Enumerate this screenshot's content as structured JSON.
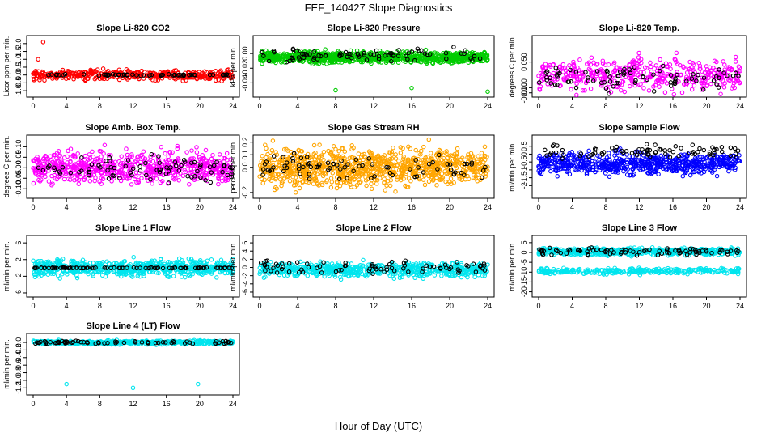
{
  "figure": {
    "title": "FEF_140427  Slope Diagnostics",
    "xlabel": "Hour of Day (UTC)"
  },
  "chart_data": [
    {
      "type": "scatter",
      "title": "Slope Li-820 CO2",
      "ylabel": "Licor ppm per min.",
      "color": "#ff0000",
      "xlim": [
        0,
        24
      ],
      "ylim": [
        -1.2,
        2.3
      ],
      "yticks": [
        -1.0,
        -0.5,
        0.0,
        0.5,
        1.0,
        1.5,
        2.0
      ],
      "ytick_labels": [
        "-1.0",
        "-0.5",
        "0.0",
        "0.5",
        "1.0",
        "1.5",
        "2.0"
      ],
      "xticks": [
        0,
        4,
        8,
        12,
        16,
        20,
        24
      ],
      "xtick_labels": [
        "0",
        "4",
        "8",
        "12",
        "16",
        "20",
        "24"
      ],
      "series": [
        {
          "name": "colored",
          "center": 0.0,
          "spread": 0.25,
          "n": 420,
          "outliers": [
            {
              "x": 1.2,
              "y": 2.1
            },
            {
              "x": 0.6,
              "y": 1.0
            }
          ]
        },
        {
          "name": "black",
          "center": 0.0,
          "spread": 0.08,
          "n": 60
        }
      ]
    },
    {
      "type": "scatter",
      "title": "Slope Li-820 Pressure",
      "ylabel": "kPa per min.",
      "color": "#00cc00",
      "xlim": [
        0,
        24
      ],
      "ylim": [
        -0.055,
        0.02
      ],
      "yticks": [
        -0.04,
        -0.02,
        0.0
      ],
      "ytick_labels": [
        "-0.04",
        "-0.02",
        "0.00"
      ],
      "xticks": [
        0,
        4,
        8,
        12,
        16,
        20,
        24
      ],
      "xtick_labels": [
        "0",
        "4",
        "8",
        "12",
        "16",
        "20",
        "24"
      ],
      "series": [
        {
          "name": "colored",
          "center": -0.005,
          "spread": 0.006,
          "n": 900,
          "outliers": [
            {
              "x": 8,
              "y": -0.05
            },
            {
              "x": 16,
              "y": -0.047
            },
            {
              "x": 24,
              "y": -0.052
            }
          ]
        },
        {
          "name": "black",
          "center": -0.003,
          "spread": 0.008,
          "n": 80
        }
      ]
    },
    {
      "type": "scatter",
      "title": "Slope Li-820 Temp.",
      "ylabel": "degrees C per min.",
      "color": "#ff00ff",
      "xlim": [
        0,
        24
      ],
      "ylim": [
        -0.012,
        0.095
      ],
      "yticks": [
        -0.01,
        0.0,
        0.05
      ],
      "ytick_labels": [
        "-0.010",
        "0.000",
        "0.050"
      ],
      "xticks": [
        0,
        4,
        8,
        12,
        16,
        20,
        24
      ],
      "xtick_labels": [
        "0",
        "4",
        "8",
        "12",
        "16",
        "20",
        "24"
      ],
      "series": [
        {
          "name": "colored",
          "center": 0.025,
          "spread": 0.025,
          "n": 450
        },
        {
          "name": "black",
          "center": 0.02,
          "spread": 0.02,
          "n": 80
        }
      ]
    },
    {
      "type": "scatter",
      "title": "Slope Amb. Box Temp.",
      "ylabel": "degrees C per min.",
      "color": "#ff00ff",
      "xlim": [
        0,
        24
      ],
      "ylim": [
        -0.13,
        0.14
      ],
      "yticks": [
        -0.1,
        -0.05,
        0.0,
        0.05,
        0.1
      ],
      "ytick_labels": [
        "-0.10",
        "-0.05",
        "0.00",
        "0.05",
        "0.10"
      ],
      "xticks": [
        0,
        4,
        8,
        12,
        16,
        20,
        24
      ],
      "xtick_labels": [
        "0",
        "4",
        "8",
        "12",
        "16",
        "20",
        "24"
      ],
      "series": [
        {
          "name": "colored",
          "center": 0.0,
          "spread": 0.06,
          "n": 650
        },
        {
          "name": "black",
          "center": 0.0,
          "spread": 0.05,
          "n": 80
        }
      ]
    },
    {
      "type": "scatter",
      "title": "Slope Gas Stream RH",
      "ylabel": "percent per min.",
      "color": "#ffa500",
      "xlim": [
        0,
        24
      ],
      "ylim": [
        -0.22,
        0.23
      ],
      "yticks": [
        -0.2,
        0.0,
        0.1,
        0.2
      ],
      "ytick_labels": [
        "-0.2",
        "0.0",
        "0.1",
        "0.2"
      ],
      "xticks": [
        0,
        4,
        8,
        12,
        16,
        20,
        24
      ],
      "xtick_labels": [
        "0",
        "4",
        "8",
        "12",
        "16",
        "20",
        "24"
      ],
      "series": [
        {
          "name": "colored",
          "center": 0.0,
          "spread": 0.12,
          "n": 950
        },
        {
          "name": "black",
          "center": 0.0,
          "spread": 0.08,
          "n": 80
        }
      ]
    },
    {
      "type": "scatter",
      "title": "Slope Sample Flow",
      "ylabel": "ml/min per min.",
      "color": "#0000ff",
      "xlim": [
        0,
        24
      ],
      "ylim": [
        -2.6,
        1.0
      ],
      "yticks": [
        -2,
        -1.5,
        -1,
        -0.5,
        0,
        0.5
      ],
      "ytick_labels": [
        "-2",
        "-1.5",
        "-1",
        "-0.5",
        "0",
        "0.5"
      ],
      "xticks": [
        0,
        4,
        8,
        12,
        16,
        20,
        24
      ],
      "xtick_labels": [
        "0",
        "4",
        "8",
        "12",
        "16",
        "20",
        "24"
      ],
      "series": [
        {
          "name": "colored",
          "center": -0.6,
          "spread": 0.55,
          "n": 650
        },
        {
          "name": "black",
          "center": 0.2,
          "spread": 0.35,
          "n": 80
        }
      ]
    },
    {
      "type": "scatter",
      "title": "Slope Line 1 Flow",
      "ylabel": "ml/min per min.",
      "color": "#00e5ee",
      "xlim": [
        0,
        24
      ],
      "ylim": [
        -6.2,
        7.0
      ],
      "yticks": [
        -6,
        -2,
        2,
        6
      ],
      "ytick_labels": [
        "-6",
        "-2",
        "2",
        "6"
      ],
      "xticks": [
        0,
        4,
        8,
        12,
        16,
        20,
        24
      ],
      "xtick_labels": [
        "0",
        "4",
        "8",
        "12",
        "16",
        "20",
        "24"
      ],
      "series": [
        {
          "name": "colored",
          "center": 0.0,
          "spread": 1.6,
          "n": 650
        },
        {
          "name": "black",
          "center": 0.0,
          "spread": 0.15,
          "n": 90
        }
      ]
    },
    {
      "type": "scatter",
      "title": "Slope Line 2 Flow",
      "ylabel": "ml/min per min.",
      "color": "#00e5ee",
      "xlim": [
        0,
        24
      ],
      "ylim": [
        -6.4,
        7.0
      ],
      "yticks": [
        -6,
        -4,
        -2,
        0,
        2,
        4,
        6
      ],
      "ytick_labels": [
        "-6",
        "-4",
        "-2",
        "0",
        "2",
        "4",
        "6"
      ],
      "xticks": [
        0,
        4,
        8,
        12,
        16,
        20,
        24
      ],
      "xtick_labels": [
        "0",
        "4",
        "8",
        "12",
        "16",
        "20",
        "24"
      ],
      "series": [
        {
          "name": "colored",
          "center": -0.5,
          "spread": 1.4,
          "n": 650
        },
        {
          "name": "black",
          "center": 0.0,
          "spread": 1.3,
          "n": 80
        }
      ]
    },
    {
      "type": "scatter",
      "title": "Slope Line 3 Flow",
      "ylabel": "ml/min per min.",
      "color": "#00e5ee",
      "xlim": [
        0,
        24
      ],
      "ylim": [
        -21,
        7
      ],
      "yticks": [
        -20,
        -15,
        -10,
        -5,
        0,
        5
      ],
      "ytick_labels": [
        "-20",
        "-15",
        "-10",
        "-5",
        "0",
        "5"
      ],
      "xticks": [
        0,
        4,
        8,
        12,
        16,
        20,
        24
      ],
      "xtick_labels": [
        "0",
        "4",
        "8",
        "12",
        "16",
        "20",
        "24"
      ],
      "series": [
        {
          "name": "colored",
          "center": 0.5,
          "spread": 1.5,
          "n": 500
        },
        {
          "name": "colored-lower",
          "center": -9.5,
          "spread": 1.2,
          "n": 280
        },
        {
          "name": "black",
          "center": 0.5,
          "spread": 1.5,
          "n": 80
        }
      ]
    },
    {
      "type": "scatter",
      "title": "Slope Line 4 (LT) Flow",
      "ylabel": "ml/min per min.",
      "color": "#00e5ee",
      "xlim": [
        0,
        24
      ],
      "ylim": [
        -1.3,
        0.15
      ],
      "yticks": [
        -1.2,
        -1.0,
        -0.8,
        -0.6,
        -0.4,
        -0.2,
        0.0
      ],
      "ytick_labels": [
        "-1.2",
        "-1.0",
        "-0.8",
        "-0.6",
        "-0.4",
        "-0.2",
        "0.0"
      ],
      "xticks": [
        0,
        4,
        8,
        12,
        16,
        20,
        24
      ],
      "xtick_labels": [
        "0",
        "4",
        "8",
        "12",
        "16",
        "20",
        "24"
      ],
      "series": [
        {
          "name": "colored",
          "center": 0.0,
          "spread": 0.04,
          "n": 450,
          "outliers": [
            {
              "x": 4,
              "y": -1.1
            },
            {
              "x": 12,
              "y": -1.2
            },
            {
              "x": 19.8,
              "y": -1.1
            }
          ]
        },
        {
          "name": "black",
          "center": 0.0,
          "spread": 0.04,
          "n": 70
        }
      ]
    }
  ]
}
